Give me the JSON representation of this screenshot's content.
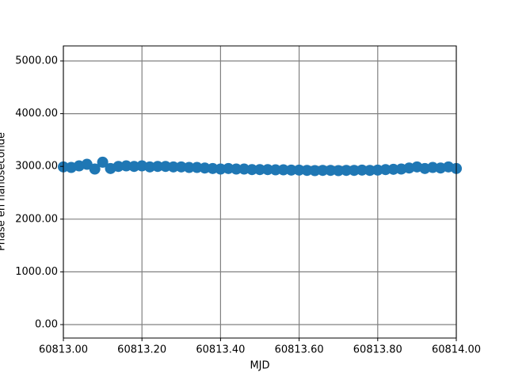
{
  "chart_data": {
    "type": "scatter",
    "x_label": "MJD",
    "y_label": "Phase en nanoseconde",
    "x": [
      60813.0,
      60813.02,
      60813.04,
      60813.06,
      60813.08,
      60813.1,
      60813.12,
      60813.14,
      60813.16,
      60813.18,
      60813.2,
      60813.22,
      60813.24,
      60813.26,
      60813.28,
      60813.3,
      60813.32,
      60813.34,
      60813.36,
      60813.38,
      60813.4,
      60813.42,
      60813.44,
      60813.46,
      60813.48,
      60813.5,
      60813.52,
      60813.54,
      60813.56,
      60813.58,
      60813.6,
      60813.62,
      60813.64,
      60813.66,
      60813.68,
      60813.7,
      60813.72,
      60813.74,
      60813.76,
      60813.78,
      60813.8,
      60813.82,
      60813.84,
      60813.86,
      60813.88,
      60813.9,
      60813.92,
      60813.94,
      60813.96,
      60813.98,
      60814.0
    ],
    "values": [
      2990,
      2980,
      3010,
      3040,
      2950,
      3080,
      2960,
      3000,
      3010,
      3000,
      3010,
      2990,
      3000,
      3000,
      2990,
      2990,
      2980,
      2980,
      2970,
      2960,
      2950,
      2960,
      2950,
      2950,
      2940,
      2940,
      2940,
      2935,
      2935,
      2930,
      2930,
      2925,
      2920,
      2925,
      2925,
      2920,
      2925,
      2925,
      2930,
      2925,
      2930,
      2940,
      2945,
      2950,
      2970,
      2990,
      2960,
      2980,
      2970,
      2990,
      2960
    ],
    "color": "#1f77b4",
    "xlim": [
      60813.0,
      60814.0
    ],
    "xticks": [
      {
        "value": 60813.0,
        "label": "60813.00"
      },
      {
        "value": 60813.2,
        "label": "60813.20"
      },
      {
        "value": 60813.4,
        "label": "60813.40"
      },
      {
        "value": 60813.6,
        "label": "60813.60"
      },
      {
        "value": 60813.8,
        "label": "60813.80"
      },
      {
        "value": 60814.0,
        "label": "60814.00"
      }
    ],
    "ylim": [
      -255,
      5285
    ],
    "yticks": [
      {
        "value": 0,
        "label": "0.00"
      },
      {
        "value": 1000,
        "label": "1000.00"
      },
      {
        "value": 2000,
        "label": "2000.00"
      },
      {
        "value": 3000,
        "label": "3000.00"
      },
      {
        "value": 4000,
        "label": "4000.00"
      },
      {
        "value": 5000,
        "label": "5000.00"
      }
    ],
    "grid": true
  }
}
